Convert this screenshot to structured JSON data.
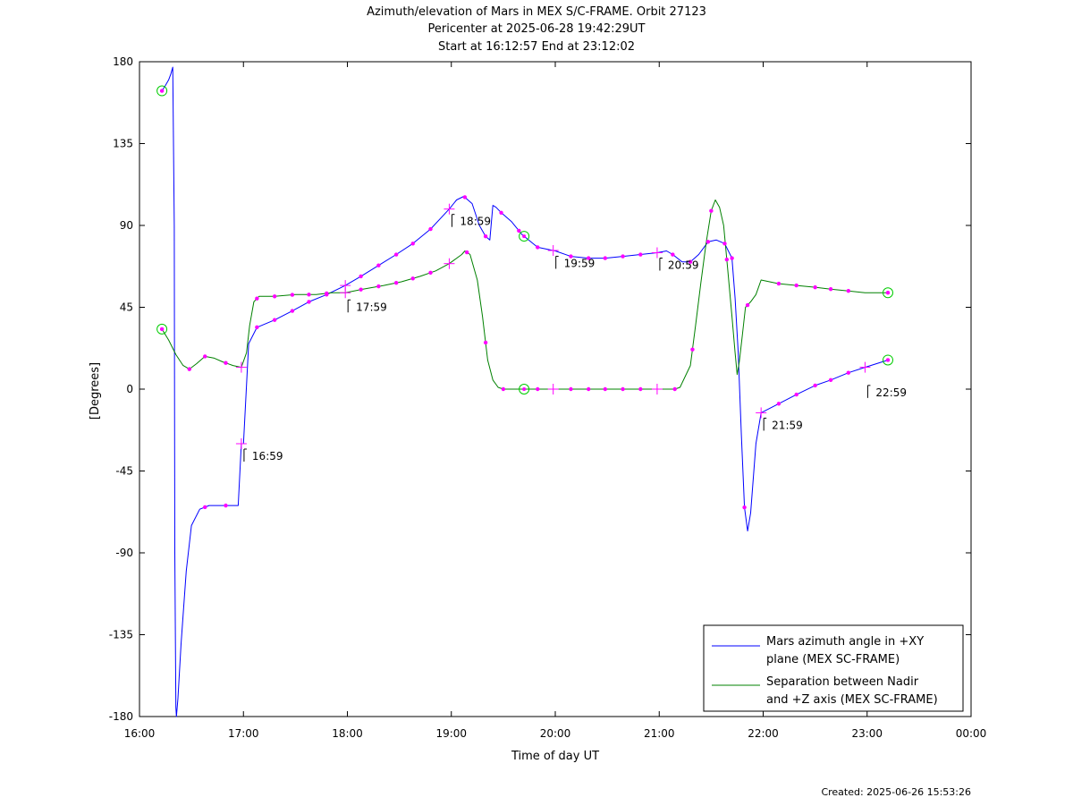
{
  "chart_data": {
    "type": "line",
    "title_lines": [
      "Azimuth/elevation of Mars in MEX S/C-FRAME.  Orbit 27123",
      "Pericenter at 2025-06-28 19:42:29UT",
      "Start at 16:12:57 End at 23:12:02"
    ],
    "xlabel": "Time of day UT",
    "ylabel": "[Degrees]",
    "xlim": [
      16.0,
      24.0
    ],
    "ylim": [
      -180,
      180
    ],
    "x_ticks": [
      {
        "v": 16,
        "label": "16:00"
      },
      {
        "v": 17,
        "label": "17:00"
      },
      {
        "v": 18,
        "label": "18:00"
      },
      {
        "v": 19,
        "label": "19:00"
      },
      {
        "v": 20,
        "label": "20:00"
      },
      {
        "v": 21,
        "label": "21:00"
      },
      {
        "v": 22,
        "label": "22:00"
      },
      {
        "v": 23,
        "label": "23:00"
      },
      {
        "v": 24,
        "label": "00:00"
      }
    ],
    "y_ticks": [
      180,
      135,
      90,
      45,
      0,
      -45,
      -90,
      -135,
      -180
    ],
    "legend_position": "bottom-right",
    "series": [
      {
        "name": "Mars azimuth angle in +XY plane (MEX SC-FRAME)",
        "legend_lines": [
          "Mars azimuth angle in +XY",
          "plane (MEX SC-FRAME)"
        ],
        "color": "#0000ff",
        "x": [
          16.216,
          16.25,
          16.28,
          16.3,
          16.32,
          16.335,
          16.34,
          16.35,
          16.355,
          16.37,
          16.4,
          16.45,
          16.5,
          16.58,
          16.67,
          16.75,
          16.83,
          16.95,
          16.98,
          17.0,
          17.05,
          17.13,
          17.3,
          17.47,
          17.63,
          17.8,
          17.98,
          18.13,
          18.3,
          18.47,
          18.63,
          18.8,
          18.98,
          19.05,
          19.12,
          19.2,
          19.27,
          19.33,
          19.37,
          19.4,
          19.43,
          19.48,
          19.58,
          19.68,
          19.83,
          20.0,
          20.15,
          20.32,
          20.48,
          20.65,
          20.82,
          20.98,
          21.07,
          21.13,
          21.22,
          21.3,
          21.38,
          21.47,
          21.55,
          21.63,
          21.7,
          21.73,
          21.76,
          21.79,
          21.82,
          21.85,
          21.88,
          21.93,
          21.98,
          22.15,
          22.32,
          22.5,
          22.65,
          22.82,
          22.98,
          23.2
        ],
        "y": [
          164,
          167,
          170,
          173,
          177,
          90,
          -90,
          -175,
          -180,
          -170,
          -140,
          -100,
          -75,
          -66,
          -64,
          -64,
          -64,
          -64,
          -30,
          -30,
          25,
          34,
          38,
          43,
          48,
          52,
          57,
          62,
          68,
          74,
          80,
          88,
          99,
          104,
          106,
          102,
          90,
          84,
          82,
          101,
          100,
          97,
          92,
          85,
          78,
          76,
          73,
          72,
          72,
          73,
          74,
          75,
          76,
          74,
          70,
          70,
          74,
          81,
          82,
          80,
          72,
          50,
          20,
          -25,
          -65,
          -78,
          -68,
          -30,
          -13,
          -8,
          -3,
          2,
          5,
          9,
          12,
          16
        ]
      },
      {
        "name": "Separation between Nadir and +Z axis (MEX SC-FRAME)",
        "legend_lines": [
          "Separation between Nadir",
          "and +Z axis (MEX SC-FRAME)"
        ],
        "color": "#008000",
        "x": [
          16.216,
          16.28,
          16.35,
          16.42,
          16.48,
          16.55,
          16.63,
          16.72,
          16.8,
          16.9,
          16.98,
          17.03,
          17.06,
          17.1,
          17.15,
          17.3,
          17.5,
          17.7,
          17.85,
          17.98,
          18.15,
          18.35,
          18.52,
          18.7,
          18.85,
          18.98,
          19.1,
          19.13,
          19.18,
          19.25,
          19.3,
          19.35,
          19.4,
          19.45,
          19.5,
          19.6,
          19.7,
          19.85,
          20.0,
          20.5,
          21.0,
          21.15,
          21.2,
          21.3,
          21.35,
          21.4,
          21.45,
          21.5,
          21.54,
          21.58,
          21.62,
          21.66,
          21.7,
          21.73,
          21.75,
          21.77,
          21.8,
          21.83,
          21.88,
          21.93,
          21.98,
          22.15,
          22.32,
          22.5,
          22.65,
          22.82,
          22.98,
          23.2
        ],
        "y": [
          33,
          27,
          19,
          13,
          11,
          14,
          18,
          17,
          15,
          13,
          12,
          20,
          35,
          48,
          51,
          51,
          52,
          52,
          53,
          53,
          55,
          57,
          59,
          62,
          65,
          69,
          74,
          76,
          74,
          60,
          40,
          16,
          5,
          1,
          0,
          0,
          0,
          0,
          0,
          0,
          0,
          0,
          1,
          13,
          35,
          58,
          80,
          98,
          104,
          100,
          90,
          65,
          40,
          20,
          8,
          15,
          30,
          45,
          48,
          52,
          60,
          58,
          57,
          56,
          55,
          54,
          53,
          53
        ]
      }
    ],
    "markers": {
      "dots_series1_x": [
        16.216,
        16.63,
        16.83,
        17.13,
        17.3,
        17.47,
        17.63,
        17.8,
        18.13,
        18.3,
        18.47,
        18.63,
        18.8,
        19.13,
        19.33,
        19.48,
        19.65,
        19.83,
        20.15,
        20.32,
        20.48,
        20.65,
        20.82,
        21.13,
        21.3,
        21.47,
        21.63,
        21.7,
        21.82,
        22.15,
        22.32,
        22.5,
        22.65,
        22.82,
        23.2
      ],
      "dots_series2_x": [
        16.216,
        16.48,
        16.63,
        16.83,
        17.13,
        17.3,
        17.47,
        17.63,
        17.8,
        18.13,
        18.3,
        18.47,
        18.63,
        18.8,
        19.15,
        19.33,
        19.5,
        19.83,
        20.15,
        20.32,
        20.48,
        20.65,
        20.82,
        21.15,
        21.32,
        21.5,
        21.65,
        21.85,
        22.15,
        22.32,
        22.5,
        22.65,
        22.82,
        23.2
      ],
      "circles": [
        {
          "series": 0,
          "x": 16.216
        },
        {
          "series": 1,
          "x": 16.216
        },
        {
          "series": 1,
          "x": 19.7
        },
        {
          "series": 0,
          "x": 19.7
        },
        {
          "series": 0,
          "x": 23.2
        },
        {
          "series": 1,
          "x": 23.2
        }
      ],
      "crosses": [
        {
          "series": 1,
          "x": 16.98
        },
        {
          "series": 0,
          "x": 16.98
        },
        {
          "series": 0,
          "x": 17.98
        },
        {
          "series": 1,
          "x": 17.98
        },
        {
          "series": 0,
          "x": 18.98
        },
        {
          "series": 1,
          "x": 18.98
        },
        {
          "series": 0,
          "x": 19.98
        },
        {
          "series": 1,
          "x": 19.98
        },
        {
          "series": 0,
          "x": 20.98
        },
        {
          "series": 1,
          "x": 20.98
        },
        {
          "series": 0,
          "x": 21.98
        },
        {
          "series": 0,
          "x": 22.98
        }
      ]
    },
    "annotations": [
      {
        "x": 16.98,
        "y": -30,
        "label": "16:59"
      },
      {
        "x": 17.98,
        "y": 52,
        "label": "17:59"
      },
      {
        "x": 18.98,
        "y": 99,
        "label": "18:59"
      },
      {
        "x": 19.98,
        "y": 76,
        "label": "19:59"
      },
      {
        "x": 20.98,
        "y": 75,
        "label": "20:59"
      },
      {
        "x": 21.98,
        "y": -13,
        "label": "21:59"
      },
      {
        "x": 22.98,
        "y": 5,
        "label": "22:59"
      }
    ],
    "created": "Created: 2025-06-26 15:53:26"
  }
}
